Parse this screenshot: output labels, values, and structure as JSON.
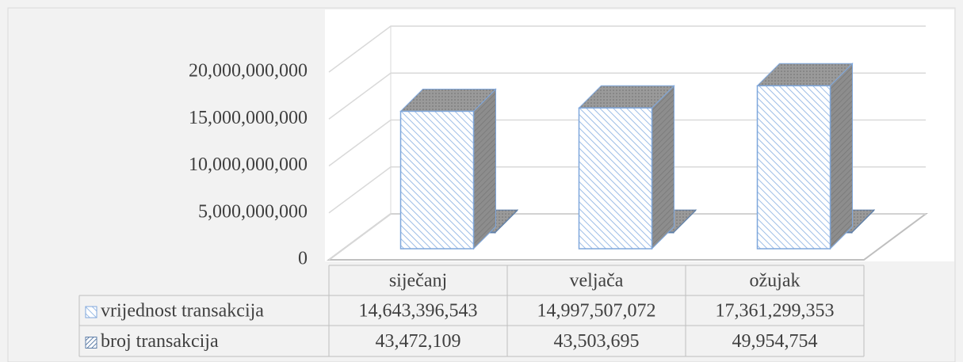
{
  "chart_data": {
    "type": "bar3d",
    "categories": [
      "siječanj",
      "veljača",
      "ožujak"
    ],
    "series": [
      {
        "name": "vrijednost transakcija",
        "color": "#7fa7dc",
        "values": [
          14643396543,
          14997507072,
          17361299353
        ],
        "value_labels": [
          "14,643,396,543",
          "14,997,507,072",
          "17,361,299,353"
        ]
      },
      {
        "name": "broj transakcija",
        "color": "#5f7fa8",
        "values": [
          43472109,
          43503695,
          49954754
        ],
        "value_labels": [
          "43,472,109",
          "43,503,695",
          "49,954,754"
        ]
      }
    ],
    "ylim": [
      0,
      20000000000
    ],
    "yticks": [
      {
        "value": 0,
        "label": "0"
      },
      {
        "value": 5000000000,
        "label": "5,000,000,000"
      },
      {
        "value": 10000000000,
        "label": "10,000,000,000"
      },
      {
        "value": 15000000000,
        "label": "15,000,000,000"
      },
      {
        "value": 20000000000,
        "label": "20,000,000,000"
      }
    ],
    "grid": true
  }
}
